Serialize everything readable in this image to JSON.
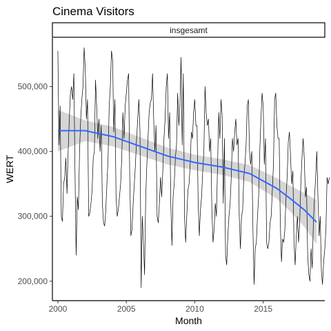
{
  "chart_data": {
    "type": "line",
    "title": "Cinema Visitors",
    "facet_label": "insgesamt",
    "xlabel": "Month",
    "ylabel": "WERT",
    "x_ticks": [
      "2000",
      "2005",
      "2010",
      "2015"
    ],
    "y_ticks": [
      "200,000",
      "300,000",
      "400,000",
      "500,000"
    ],
    "xlim": [
      1999.6,
      2019.5
    ],
    "ylim": [
      170000,
      575000
    ],
    "grid": false,
    "colors": {
      "series": "#000000",
      "smooth": "#3366ff",
      "ribbon": "#999999"
    },
    "series": [
      {
        "x_start": 2000.0,
        "step": "monthly",
        "values": [
          555000,
          410000,
          470000,
          300000,
          292000,
          350000,
          360000,
          390000,
          335000,
          400000,
          450000,
          490000,
          500000,
          480000,
          520000,
          370000,
          240000,
          330000,
          310000,
          400000,
          450000,
          480000,
          500000,
          560000,
          530000,
          450000,
          480000,
          300000,
          305000,
          320000,
          340000,
          390000,
          400000,
          510000,
          470000,
          420000,
          450000,
          400000,
          440000,
          320000,
          290000,
          285000,
          310000,
          350000,
          390000,
          470000,
          500000,
          555000,
          540000,
          430000,
          480000,
          330000,
          300000,
          310000,
          330000,
          350000,
          390000,
          460000,
          420000,
          470000,
          490000,
          510000,
          520000,
          360000,
          270000,
          280000,
          320000,
          350000,
          380000,
          420000,
          450000,
          480000,
          430000,
          190000,
          300000,
          260000,
          210000,
          330000,
          380000,
          420000,
          460000,
          475000,
          480000,
          520000,
          450000,
          400000,
          440000,
          300000,
          290000,
          320000,
          360000,
          330000,
          370000,
          420000,
          450000,
          500000,
          520000,
          420000,
          460000,
          320000,
          255000,
          330000,
          350000,
          390000,
          410000,
          490000,
          440000,
          470000,
          545000,
          410000,
          520000,
          300000,
          260000,
          300000,
          340000,
          350000,
          380000,
          430000,
          420000,
          460000,
          480000,
          440000,
          440000,
          320000,
          270000,
          310000,
          330000,
          370000,
          400000,
          500000,
          460000,
          440000,
          450000,
          400000,
          420000,
          310000,
          260000,
          280000,
          320000,
          300000,
          380000,
          460000,
          420000,
          480000,
          455000,
          320000,
          420000,
          240000,
          225000,
          270000,
          300000,
          320000,
          360000,
          420000,
          400000,
          430000,
          450000,
          410000,
          420000,
          300000,
          250000,
          300000,
          310000,
          360000,
          380000,
          410000,
          470000,
          480000,
          400000,
          380000,
          400000,
          280000,
          195000,
          250000,
          260000,
          300000,
          330000,
          400000,
          450000,
          490000,
          470000,
          380000,
          420000,
          260000,
          250000,
          260000,
          290000,
          300000,
          340000,
          380000,
          480000,
          490000,
          440000,
          420000,
          420000,
          290000,
          230000,
          265000,
          260000,
          280000,
          330000,
          360000,
          415000,
          430000,
          390000,
          350000,
          370000,
          260000,
          225000,
          270000,
          300000,
          260000,
          290000,
          350000,
          390000,
          420000,
          390000,
          330000,
          345000,
          240000,
          210000,
          200000,
          250000,
          220000,
          290000,
          330000,
          360000,
          400000,
          330000,
          270000,
          300000,
          215000,
          195000,
          230000,
          250000,
          280000,
          360000,
          350000,
          360000
        ]
      }
    ],
    "smooth": {
      "x": [
        2000,
        2002,
        2004,
        2006,
        2008,
        2010,
        2012,
        2014,
        2016,
        2017,
        2018,
        2018.9
      ],
      "y": [
        432000,
        432000,
        423000,
        408000,
        393000,
        383000,
        376000,
        366000,
        343000,
        327000,
        310000,
        291000
      ],
      "ci_half_width": [
        32000,
        16000,
        15000,
        14000,
        13000,
        12000,
        12000,
        13000,
        16000,
        20000,
        26000,
        34000
      ]
    }
  }
}
